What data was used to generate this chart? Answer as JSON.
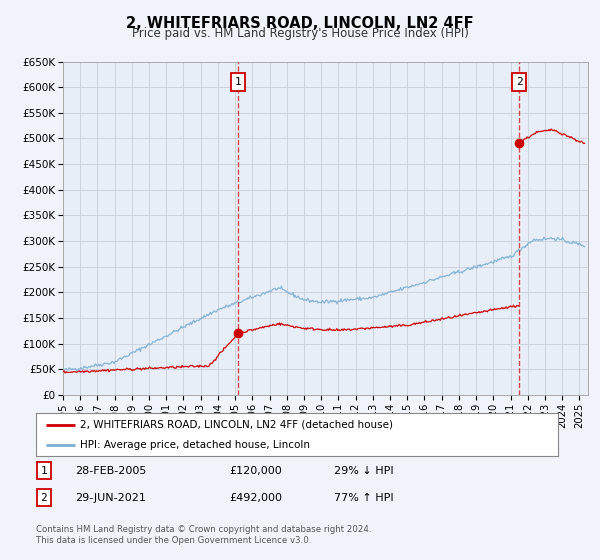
{
  "title": "2, WHITEFRIARS ROAD, LINCOLN, LN2 4FF",
  "subtitle": "Price paid vs. HM Land Registry's House Price Index (HPI)",
  "ylim": [
    0,
    650000
  ],
  "xlim_start": 1995.0,
  "xlim_end": 2025.5,
  "yticks": [
    0,
    50000,
    100000,
    150000,
    200000,
    250000,
    300000,
    350000,
    400000,
    450000,
    500000,
    550000,
    600000,
    650000
  ],
  "ytick_labels": [
    "£0",
    "£50K",
    "£100K",
    "£150K",
    "£200K",
    "£250K",
    "£300K",
    "£350K",
    "£400K",
    "£450K",
    "£500K",
    "£550K",
    "£600K",
    "£650K"
  ],
  "xticks": [
    1995,
    1996,
    1997,
    1998,
    1999,
    2000,
    2001,
    2002,
    2003,
    2004,
    2005,
    2006,
    2007,
    2008,
    2009,
    2010,
    2011,
    2012,
    2013,
    2014,
    2015,
    2016,
    2017,
    2018,
    2019,
    2020,
    2021,
    2022,
    2023,
    2024,
    2025
  ],
  "property_color": "#cc0000",
  "hpi_color": "#7bafd4",
  "marker_color": "#cc0000",
  "vline_color": "#cc0000",
  "marker1_x": 2005.17,
  "marker1_y": 120000,
  "marker2_x": 2021.5,
  "marker2_y": 492000,
  "legend_label1": "2, WHITEFRIARS ROAD, LINCOLN, LN2 4FF (detached house)",
  "legend_label2": "HPI: Average price, detached house, Lincoln",
  "table_row1": [
    "1",
    "28-FEB-2005",
    "£120,000",
    "29% ↓ HPI"
  ],
  "table_row2": [
    "2",
    "29-JUN-2021",
    "£492,000",
    "77% ↑ HPI"
  ],
  "footnote1": "Contains HM Land Registry data © Crown copyright and database right 2024.",
  "footnote2": "This data is licensed under the Open Government Licence v3.0.",
  "bg_color": "#f0f4fa",
  "plot_bg": "#e8eef8",
  "grid_color": "#c8d0dc"
}
